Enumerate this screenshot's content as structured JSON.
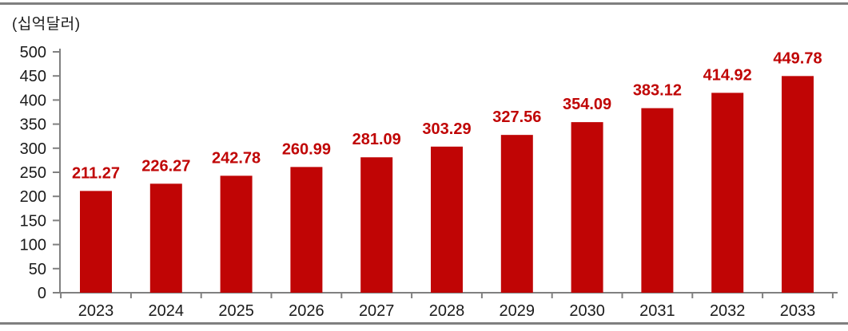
{
  "page": {
    "background": "#ffffff",
    "border_line_color": "#7f7f7f"
  },
  "chart_data": {
    "type": "bar",
    "title": "",
    "unit_label": "(십억달러)",
    "categories": [
      "2023",
      "2024",
      "2025",
      "2026",
      "2027",
      "2028",
      "2029",
      "2030",
      "2031",
      "2032",
      "2033"
    ],
    "values": [
      211.27,
      226.27,
      242.78,
      260.99,
      281.09,
      303.29,
      327.56,
      354.09,
      383.12,
      414.92,
      449.78
    ],
    "value_labels": [
      "211.27",
      "226.27",
      "242.78",
      "260.99",
      "281.09",
      "303.29",
      "327.56",
      "354.09",
      "383.12",
      "414.92",
      "449.78"
    ],
    "xlabel": "",
    "ylabel": "",
    "ylim": [
      0,
      500
    ],
    "ytick_step": 50,
    "ytick_labels": [
      "0",
      "50",
      "100",
      "150",
      "200",
      "250",
      "300",
      "350",
      "400",
      "450",
      "500"
    ],
    "grid": false,
    "legend": null,
    "bar_color": "#c00505",
    "value_label_color": "#c00505",
    "axis_color": "#808080",
    "tick_text_color": "#1a1a1a"
  }
}
